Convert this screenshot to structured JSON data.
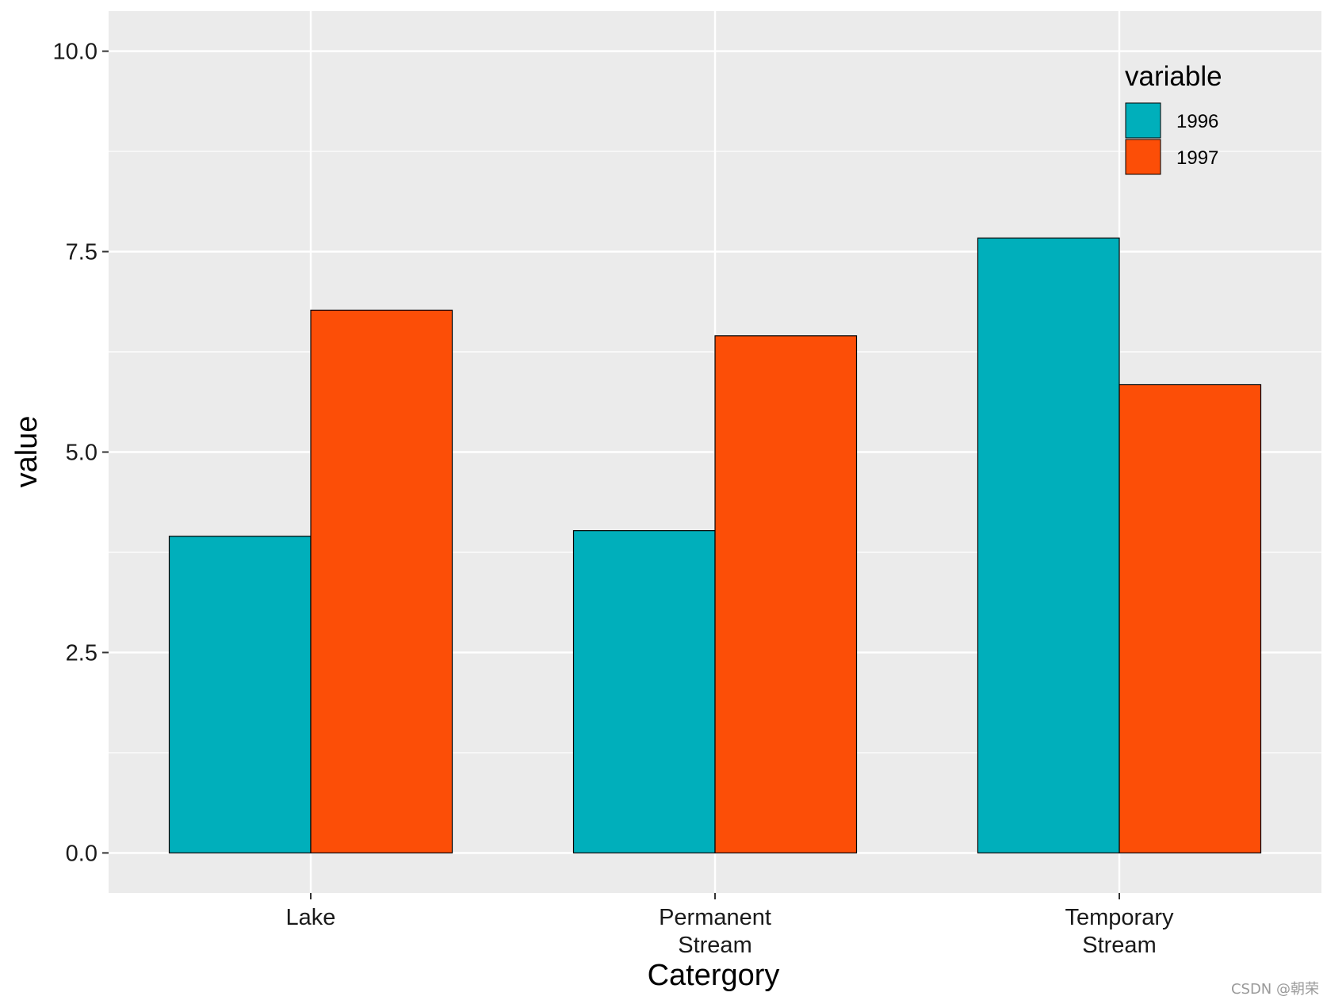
{
  "chart_data": {
    "type": "bar",
    "xlabel": "Catergory",
    "ylabel": "value",
    "categories": [
      [
        "Lake"
      ],
      [
        "Permanent",
        "Stream"
      ],
      [
        "Temporary",
        "Stream"
      ]
    ],
    "series": [
      {
        "name": "1996",
        "color": "#00AFBB",
        "values": [
          3.95,
          4.02,
          7.67
        ]
      },
      {
        "name": "1997",
        "color": "#FC4E07",
        "values": [
          6.77,
          6.45,
          5.84
        ]
      }
    ],
    "ylim": [
      -0.5,
      10.5
    ],
    "yticks": [
      0.0,
      2.5,
      5.0,
      7.5,
      10.0
    ],
    "ytick_labels": [
      "0.0",
      "2.5",
      "5.0",
      "7.5",
      "10.0"
    ],
    "grid": true,
    "legend": {
      "title": "variable",
      "position": "top-right"
    },
    "panel_background": "#EBEBEB"
  },
  "watermark": "CSDN @朝荣"
}
